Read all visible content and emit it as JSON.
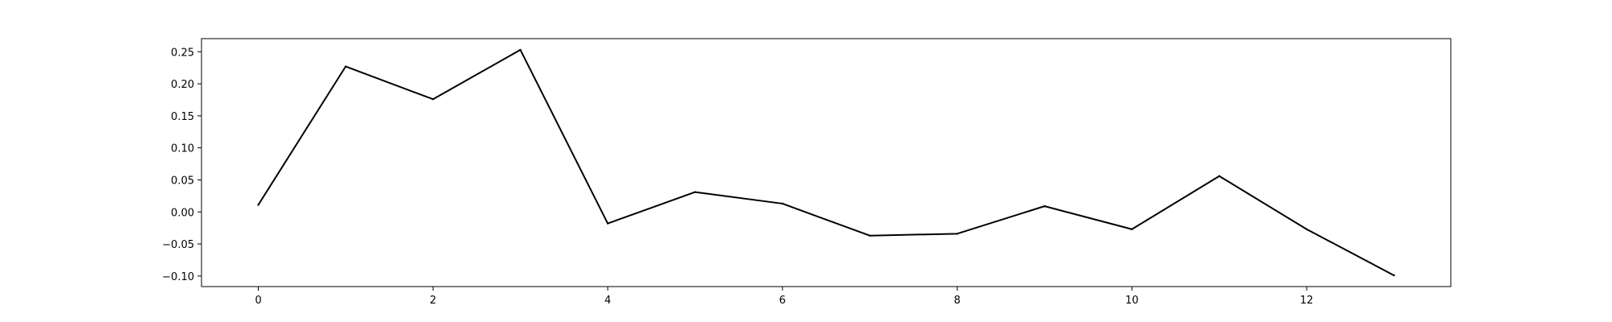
{
  "chart_data": {
    "type": "line",
    "title": "",
    "xlabel": "",
    "ylabel": "",
    "x": [
      0,
      1,
      2,
      3,
      4,
      5,
      6,
      7,
      8,
      9,
      10,
      11,
      12,
      13
    ],
    "series": [
      {
        "values": [
          0.011,
          0.227,
          0.176,
          0.253,
          -0.018,
          0.031,
          0.013,
          -0.037,
          -0.034,
          0.009,
          -0.027,
          0.056,
          -0.027,
          -0.099
        ],
        "color": "#000000"
      }
    ],
    "xlim": [
      -0.65,
      13.65
    ],
    "ylim": [
      -0.1165,
      0.2705
    ],
    "xticks": [
      0,
      2,
      4,
      6,
      8,
      10,
      12
    ],
    "xtick_labels": [
      "0",
      "2",
      "4",
      "6",
      "8",
      "10",
      "12"
    ],
    "yticks": [
      0.25,
      0.2,
      0.15,
      0.1,
      0.05,
      0.0,
      -0.05,
      -0.1
    ],
    "ytick_labels": [
      "0.25",
      "0.20",
      "0.15",
      "0.10",
      "0.05",
      "0.00",
      "−0.05",
      "−0.10"
    ],
    "grid": false,
    "legend": "none"
  }
}
